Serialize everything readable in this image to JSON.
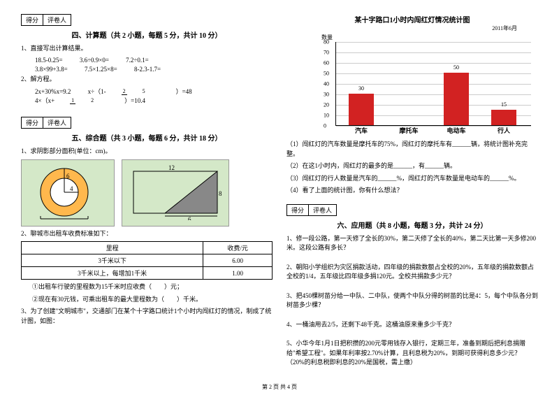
{
  "scorebox": {
    "left": "得分",
    "right": "评卷人"
  },
  "sec4": {
    "title": "四、计算题（共 2 小题，每题 5 分，共计 10 分）",
    "q1": "1、直接写出计算结果。",
    "row1a": "18.5-0.25=",
    "row1b": "3.6÷0.9×0=",
    "row1c": "7.2÷0.1=",
    "row2a": "3.8×99+3.8=",
    "row2b": "7.5×1.25×8=",
    "row2c": "8-2.3-1.7=",
    "q2": "2、解方程。",
    "eq1": "2x+30%x=9.2",
    "eq2p": "x÷（1-",
    "eq2f1n": "2",
    "eq2f1d": "5",
    "eq2s": "）=48",
    "eq3p": "4×（x+",
    "eq3f2n": "1",
    "eq3f2d": "2",
    "eq3s": "）=10.4"
  },
  "sec5": {
    "title": "五、综合题（共 3 小题，每题 6 分，共计 18 分）",
    "q1": "1、求阴影部分面积(单位：cm)。",
    "fig1": {
      "outer_bg": "#d4e8c8",
      "ring": "#ffb84d",
      "inner": "#fff",
      "d1": "4",
      "d2": "6"
    },
    "fig2": {
      "w": "12",
      "h": "8",
      "diag": "6"
    },
    "q2": "2、聊城市出租车收费标准如下：",
    "table": {
      "h1": "里程",
      "h2": "收费/元",
      "r1c1": "3千米以下",
      "r1c2": "6.00",
      "r2c1": "3千米以上，每增加1千米",
      "r2c2": "1.00"
    },
    "sub1": "①出租车行驶的里程数为15千米时应收费（　　）元；",
    "sub2": "②现在有30元钱，可乘出租车的最大里程数为（　　）千米。",
    "q3": "3、为了创建\"文明城市\"，交通部门在某个十字路口统计1个小时内闯红灯的情况，制成了统计图，如图："
  },
  "chart": {
    "title": "某十字路口1小时内闯红灯情况统计图",
    "date": "2011年6月",
    "ylabel": "数量",
    "ymax": 80,
    "yticks": [
      0,
      10,
      20,
      30,
      40,
      50,
      60,
      70,
      80
    ],
    "grid_color": "#cccccc",
    "bar_color": "#d22222",
    "cats": [
      "汽车",
      "摩托车",
      "电动车",
      "行人"
    ],
    "vals": [
      30,
      null,
      50,
      15
    ],
    "labels": [
      "30",
      "",
      "50",
      "15"
    ]
  },
  "chartq": {
    "l1": "（1）闯红灯的汽车数量是摩托车的75%，闯红灯的摩托车有______辆，将统计图补充完整。",
    "l2": "（2）在这1小时内，闯红灯的最多的是______，有______辆。",
    "l3": "（3）闯红灯的行人数量是汽车的______%，闯红灯的汽车数量是电动车的______%。",
    "l4": "（4）看了上面的统计图，你有什么想法？"
  },
  "sec6": {
    "title": "六、应用题（共 8 小题，每题 3 分，共计 24 分）",
    "q1": "1、修一段公路，第一天修了全长的30%，第二天修了全长的40%，第二天比第一天多修200米。这段公路有多长？",
    "q2": "2、朝阳小学组织为灾区捐款活动，四年级的捐款数额占全校的20%，五年级的捐款数额占全校的1/4，五年级比四年级多捐120元。全校共捐款多少元？",
    "q3": "3、把450棵树苗分给一中队、二中队，使两个中队分得的树苗的比是4：5，每个中队各分到树苗多少棵？",
    "q4": "4、一桶油用去2/5，还剩下48千克。这桶油原来重多少千克？",
    "q5": "5、小华今年1月1日把积攒的200元零用钱存入银行，定期三年，准备到期后把利息捐赠给\"希望工程\"。如果年利率按2.70%计算，且利息税为20%，到期可获得利息多少元？（20%的利息税即利息的20%是国税，需上缴）"
  },
  "footer": "第 2 页 共 4 页"
}
